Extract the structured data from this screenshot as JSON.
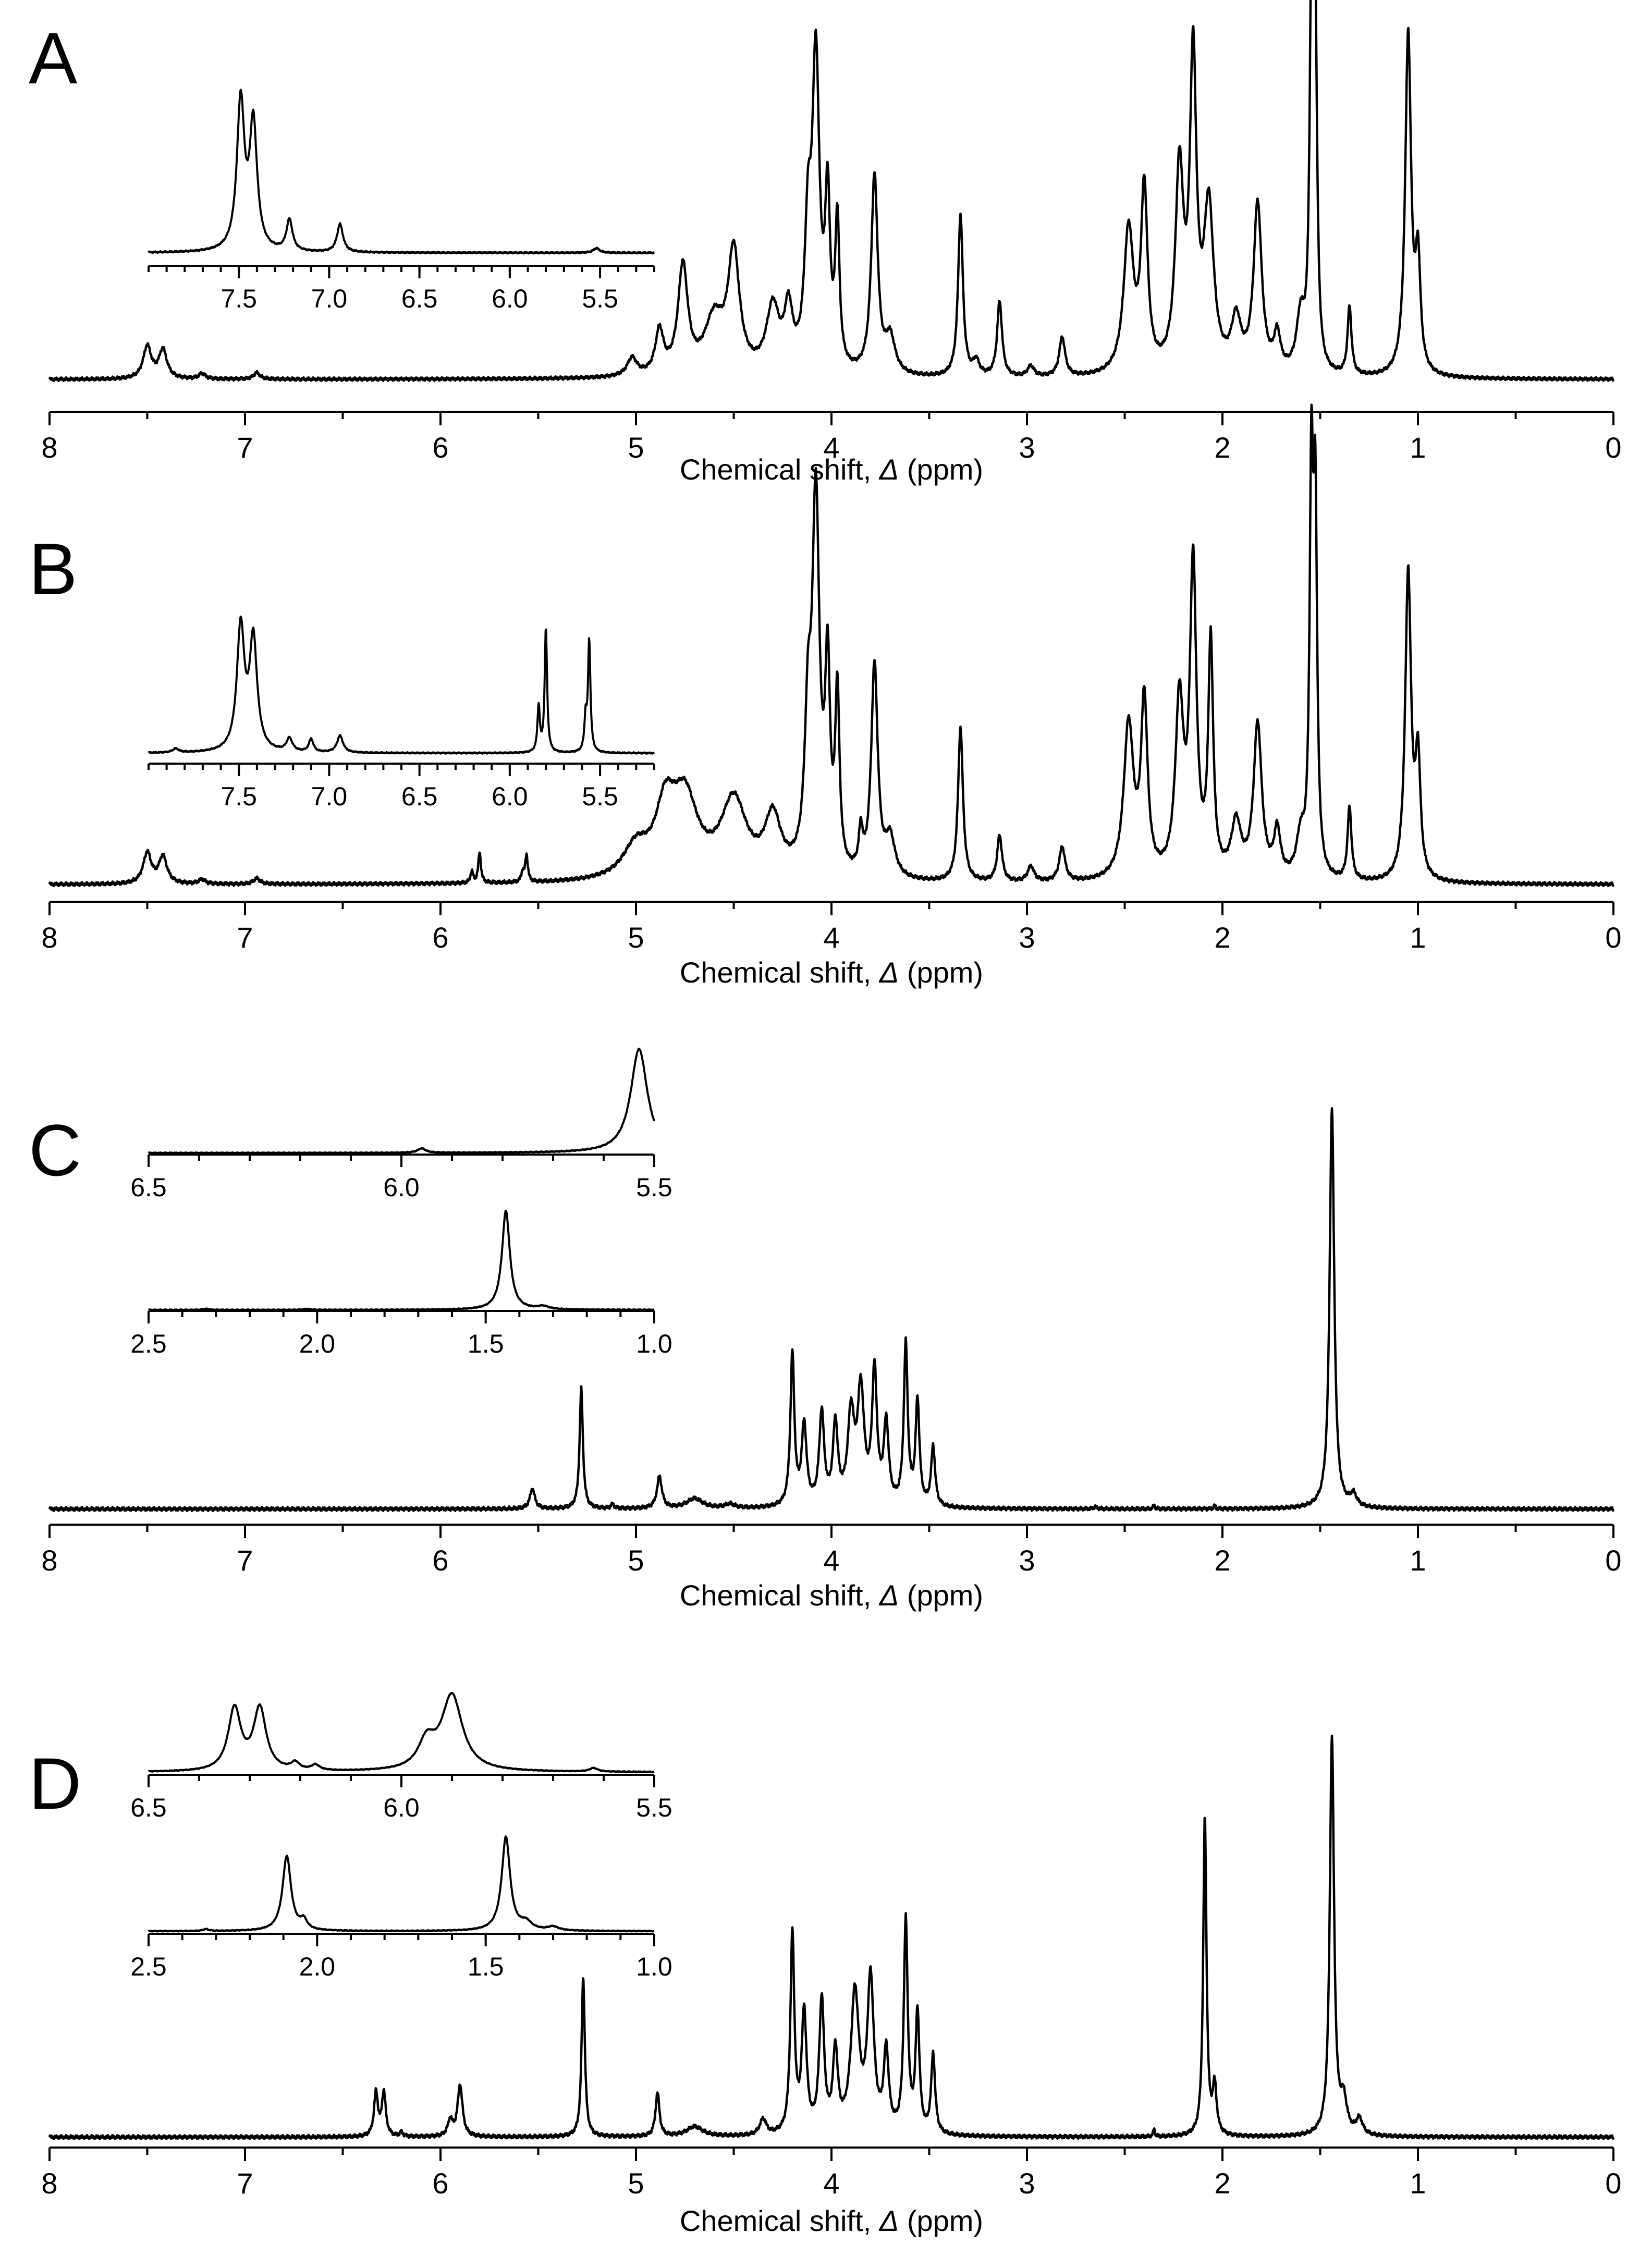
{
  "chart_data": [
    {
      "type": "line",
      "panel": "A",
      "xlabel_main": "Chemical shift, ",
      "xlabel_symbol": "Δ",
      "xlabel_unit": " (ppm)",
      "xlim": [
        8,
        0
      ],
      "x_reversed": true,
      "ticks": [
        "8",
        "7",
        "6",
        "5",
        "4",
        "3",
        "2",
        "1",
        "0"
      ],
      "peaks": [
        {
          "x": 7.5,
          "h": 0.09,
          "w": 0.025
        },
        {
          "x": 7.42,
          "h": 0.08,
          "w": 0.025
        },
        {
          "x": 7.22,
          "h": 0.015,
          "w": 0.02
        },
        {
          "x": 6.94,
          "h": 0.018,
          "w": 0.02
        },
        {
          "x": 5.02,
          "h": 0.05,
          "w": 0.03
        },
        {
          "x": 4.88,
          "h": 0.12,
          "w": 0.025
        },
        {
          "x": 4.76,
          "h": 0.3,
          "w": 0.03
        },
        {
          "x": 4.6,
          "h": 0.15,
          "w": 0.06
        },
        {
          "x": 4.5,
          "h": 0.33,
          "w": 0.035
        },
        {
          "x": 4.3,
          "h": 0.18,
          "w": 0.04
        },
        {
          "x": 4.22,
          "h": 0.16,
          "w": 0.025
        },
        {
          "x": 4.12,
          "h": 0.35,
          "w": 0.02
        },
        {
          "x": 4.08,
          "h": 0.85,
          "w": 0.022
        },
        {
          "x": 4.02,
          "h": 0.45,
          "w": 0.015
        },
        {
          "x": 3.97,
          "h": 0.4,
          "w": 0.013
        },
        {
          "x": 3.78,
          "h": 0.55,
          "w": 0.02
        },
        {
          "x": 3.7,
          "h": 0.1,
          "w": 0.03
        },
        {
          "x": 3.34,
          "h": 0.45,
          "w": 0.015
        },
        {
          "x": 3.26,
          "h": 0.04,
          "w": 0.02
        },
        {
          "x": 3.14,
          "h": 0.21,
          "w": 0.015
        },
        {
          "x": 2.98,
          "h": 0.03,
          "w": 0.02
        },
        {
          "x": 2.82,
          "h": 0.11,
          "w": 0.018
        },
        {
          "x": 2.48,
          "h": 0.4,
          "w": 0.03
        },
        {
          "x": 2.4,
          "h": 0.5,
          "w": 0.02
        },
        {
          "x": 2.22,
          "h": 0.55,
          "w": 0.025
        },
        {
          "x": 2.15,
          "h": 0.85,
          "w": 0.02
        },
        {
          "x": 2.07,
          "h": 0.45,
          "w": 0.03
        },
        {
          "x": 1.93,
          "h": 0.14,
          "w": 0.03
        },
        {
          "x": 1.82,
          "h": 0.47,
          "w": 0.025
        },
        {
          "x": 1.72,
          "h": 0.1,
          "w": 0.02
        },
        {
          "x": 1.6,
          "h": 0.15,
          "w": 0.025
        },
        {
          "x": 1.545,
          "h": 1.0,
          "w": 0.011
        },
        {
          "x": 1.525,
          "h": 0.9,
          "w": 0.011
        },
        {
          "x": 1.35,
          "h": 0.19,
          "w": 0.012
        },
        {
          "x": 1.05,
          "h": 0.95,
          "w": 0.018
        },
        {
          "x": 1.0,
          "h": 0.3,
          "w": 0.015
        }
      ],
      "inset_ranges": [
        {
          "xlim": [
            8.0,
            5.2
          ],
          "ticks": [
            "7.5",
            "7.0",
            "6.5",
            "6.0",
            "5.5"
          ],
          "peaks": [
            {
              "x": 7.49,
              "h": 0.95,
              "w": 0.025
            },
            {
              "x": 7.42,
              "h": 0.8,
              "w": 0.025
            },
            {
              "x": 7.22,
              "h": 0.2,
              "w": 0.02
            },
            {
              "x": 6.94,
              "h": 0.18,
              "w": 0.02
            },
            {
              "x": 5.52,
              "h": 0.03,
              "w": 0.02
            }
          ]
        }
      ]
    },
    {
      "type": "line",
      "panel": "B",
      "xlabel_main": "Chemical shift, ",
      "xlabel_symbol": "Δ",
      "xlabel_unit": " (ppm)",
      "xlim": [
        8,
        0
      ],
      "x_reversed": true,
      "ticks": [
        "8",
        "7",
        "6",
        "5",
        "4",
        "3",
        "2",
        "1",
        "0"
      ],
      "peaks": [
        {
          "x": 7.5,
          "h": 0.08,
          "w": 0.025
        },
        {
          "x": 7.42,
          "h": 0.07,
          "w": 0.025
        },
        {
          "x": 7.22,
          "h": 0.012,
          "w": 0.02
        },
        {
          "x": 6.94,
          "h": 0.015,
          "w": 0.02
        },
        {
          "x": 5.84,
          "h": 0.03,
          "w": 0.008
        },
        {
          "x": 5.8,
          "h": 0.08,
          "w": 0.008
        },
        {
          "x": 5.58,
          "h": 0.025,
          "w": 0.008
        },
        {
          "x": 5.56,
          "h": 0.07,
          "w": 0.008
        },
        {
          "x": 5.0,
          "h": 0.08,
          "w": 0.08
        },
        {
          "x": 4.85,
          "h": 0.16,
          "w": 0.06
        },
        {
          "x": 4.75,
          "h": 0.2,
          "w": 0.08
        },
        {
          "x": 4.5,
          "h": 0.2,
          "w": 0.08
        },
        {
          "x": 4.3,
          "h": 0.15,
          "w": 0.05
        },
        {
          "x": 4.12,
          "h": 0.35,
          "w": 0.02
        },
        {
          "x": 4.08,
          "h": 0.95,
          "w": 0.022
        },
        {
          "x": 4.02,
          "h": 0.5,
          "w": 0.015
        },
        {
          "x": 3.97,
          "h": 0.45,
          "w": 0.013
        },
        {
          "x": 3.85,
          "h": 0.1,
          "w": 0.012
        },
        {
          "x": 3.78,
          "h": 0.55,
          "w": 0.02
        },
        {
          "x": 3.7,
          "h": 0.1,
          "w": 0.03
        },
        {
          "x": 3.34,
          "h": 0.4,
          "w": 0.015
        },
        {
          "x": 3.14,
          "h": 0.12,
          "w": 0.015
        },
        {
          "x": 2.98,
          "h": 0.04,
          "w": 0.02
        },
        {
          "x": 2.82,
          "h": 0.09,
          "w": 0.018
        },
        {
          "x": 2.48,
          "h": 0.4,
          "w": 0.03
        },
        {
          "x": 2.4,
          "h": 0.45,
          "w": 0.02
        },
        {
          "x": 2.22,
          "h": 0.45,
          "w": 0.025
        },
        {
          "x": 2.15,
          "h": 0.8,
          "w": 0.02
        },
        {
          "x": 2.06,
          "h": 0.6,
          "w": 0.015
        },
        {
          "x": 1.93,
          "h": 0.14,
          "w": 0.03
        },
        {
          "x": 1.82,
          "h": 0.4,
          "w": 0.025
        },
        {
          "x": 1.72,
          "h": 0.12,
          "w": 0.02
        },
        {
          "x": 1.6,
          "h": 0.1,
          "w": 0.025
        },
        {
          "x": 1.545,
          "h": 1.0,
          "w": 0.011
        },
        {
          "x": 1.525,
          "h": 0.9,
          "w": 0.011
        },
        {
          "x": 1.35,
          "h": 0.19,
          "w": 0.012
        },
        {
          "x": 1.05,
          "h": 0.8,
          "w": 0.018
        },
        {
          "x": 1.0,
          "h": 0.3,
          "w": 0.015
        }
      ],
      "inset_ranges": [
        {
          "xlim": [
            8.0,
            5.2
          ],
          "ticks": [
            "7.5",
            "7.0",
            "6.5",
            "6.0",
            "5.5"
          ],
          "peaks": [
            {
              "x": 7.85,
              "h": 0.03,
              "w": 0.02
            },
            {
              "x": 7.49,
              "h": 0.95,
              "w": 0.025
            },
            {
              "x": 7.42,
              "h": 0.85,
              "w": 0.025
            },
            {
              "x": 7.22,
              "h": 0.1,
              "w": 0.02
            },
            {
              "x": 7.1,
              "h": 0.1,
              "w": 0.015
            },
            {
              "x": 6.94,
              "h": 0.13,
              "w": 0.02
            },
            {
              "x": 5.84,
              "h": 0.35,
              "w": 0.008
            },
            {
              "x": 5.8,
              "h": 0.95,
              "w": 0.008
            },
            {
              "x": 5.58,
              "h": 0.25,
              "w": 0.008
            },
            {
              "x": 5.56,
              "h": 0.85,
              "w": 0.008
            }
          ]
        }
      ]
    },
    {
      "type": "line",
      "panel": "C",
      "xlabel_main": "Chemical shift, ",
      "xlabel_symbol": "Δ",
      "xlabel_unit": " (ppm)",
      "xlim": [
        8,
        0
      ],
      "x_reversed": true,
      "ticks": [
        "8",
        "7",
        "6",
        "5",
        "4",
        "3",
        "2",
        "1",
        "0"
      ],
      "peaks": [
        {
          "x": 5.53,
          "h": 0.05,
          "w": 0.015
        },
        {
          "x": 5.28,
          "h": 0.3,
          "w": 0.01
        },
        {
          "x": 5.12,
          "h": 0.01,
          "w": 0.01
        },
        {
          "x": 4.88,
          "h": 0.08,
          "w": 0.015
        },
        {
          "x": 4.7,
          "h": 0.025,
          "w": 0.05
        },
        {
          "x": 4.52,
          "h": 0.01,
          "w": 0.03
        },
        {
          "x": 4.2,
          "h": 0.38,
          "w": 0.012
        },
        {
          "x": 4.14,
          "h": 0.2,
          "w": 0.015
        },
        {
          "x": 4.05,
          "h": 0.23,
          "w": 0.015
        },
        {
          "x": 3.98,
          "h": 0.2,
          "w": 0.015
        },
        {
          "x": 3.9,
          "h": 0.22,
          "w": 0.02
        },
        {
          "x": 3.85,
          "h": 0.28,
          "w": 0.02
        },
        {
          "x": 3.78,
          "h": 0.33,
          "w": 0.015
        },
        {
          "x": 3.72,
          "h": 0.2,
          "w": 0.015
        },
        {
          "x": 3.62,
          "h": 0.4,
          "w": 0.012
        },
        {
          "x": 3.56,
          "h": 0.26,
          "w": 0.012
        },
        {
          "x": 3.48,
          "h": 0.15,
          "w": 0.012
        },
        {
          "x": 2.65,
          "h": 0.005,
          "w": 0.01
        },
        {
          "x": 2.35,
          "h": 0.01,
          "w": 0.005
        },
        {
          "x": 2.04,
          "h": 0.008,
          "w": 0.005
        },
        {
          "x": 1.44,
          "h": 1.0,
          "w": 0.014
        },
        {
          "x": 1.33,
          "h": 0.03,
          "w": 0.02
        }
      ],
      "inset_ranges": [
        {
          "xlim": [
            6.5,
            5.5
          ],
          "ticks": [
            "6.5",
            "6.0",
            "5.5"
          ],
          "peaks": [
            {
              "x": 5.53,
              "h": 0.95,
              "w": 0.02
            },
            {
              "x": 5.96,
              "h": 0.04,
              "w": 0.01
            }
          ]
        },
        {
          "xlim": [
            2.5,
            1.0
          ],
          "ticks": [
            "2.5",
            "2.0",
            "1.5",
            "1.0"
          ],
          "peaks": [
            {
              "x": 2.33,
              "h": 0.01,
              "w": 0.01
            },
            {
              "x": 2.03,
              "h": 0.01,
              "w": 0.01
            },
            {
              "x": 1.44,
              "h": 1.0,
              "w": 0.014
            },
            {
              "x": 1.33,
              "h": 0.03,
              "w": 0.02
            }
          ]
        }
      ]
    },
    {
      "type": "line",
      "panel": "D",
      "xlabel_main": "Chemical shift, ",
      "xlabel_symbol": "Δ",
      "xlabel_unit": " (ppm)",
      "xlim": [
        8,
        0
      ],
      "x_reversed": true,
      "ticks": [
        "8",
        "7",
        "6",
        "5",
        "4",
        "3",
        "2",
        "1",
        "0"
      ],
      "peaks": [
        {
          "x": 6.33,
          "h": 0.11,
          "w": 0.012
        },
        {
          "x": 6.29,
          "h": 0.11,
          "w": 0.012
        },
        {
          "x": 6.2,
          "h": 0.01,
          "w": 0.01
        },
        {
          "x": 5.95,
          "h": 0.04,
          "w": 0.015
        },
        {
          "x": 5.9,
          "h": 0.13,
          "w": 0.015
        },
        {
          "x": 5.27,
          "h": 0.4,
          "w": 0.01
        },
        {
          "x": 4.89,
          "h": 0.11,
          "w": 0.012
        },
        {
          "x": 4.7,
          "h": 0.025,
          "w": 0.05
        },
        {
          "x": 4.35,
          "h": 0.04,
          "w": 0.02
        },
        {
          "x": 4.2,
          "h": 0.5,
          "w": 0.012
        },
        {
          "x": 4.14,
          "h": 0.3,
          "w": 0.015
        },
        {
          "x": 4.05,
          "h": 0.33,
          "w": 0.015
        },
        {
          "x": 3.98,
          "h": 0.2,
          "w": 0.015
        },
        {
          "x": 3.88,
          "h": 0.35,
          "w": 0.025
        },
        {
          "x": 3.8,
          "h": 0.38,
          "w": 0.02
        },
        {
          "x": 3.72,
          "h": 0.2,
          "w": 0.015
        },
        {
          "x": 3.62,
          "h": 0.53,
          "w": 0.012
        },
        {
          "x": 3.56,
          "h": 0.3,
          "w": 0.012
        },
        {
          "x": 3.48,
          "h": 0.2,
          "w": 0.012
        },
        {
          "x": 2.35,
          "h": 0.02,
          "w": 0.005
        },
        {
          "x": 2.09,
          "h": 0.8,
          "w": 0.01
        },
        {
          "x": 2.04,
          "h": 0.12,
          "w": 0.012
        },
        {
          "x": 1.44,
          "h": 1.0,
          "w": 0.013
        },
        {
          "x": 1.38,
          "h": 0.08,
          "w": 0.02
        },
        {
          "x": 1.3,
          "h": 0.04,
          "w": 0.02
        }
      ],
      "inset_ranges": [
        {
          "xlim": [
            6.5,
            5.5
          ],
          "ticks": [
            "6.5",
            "6.0",
            "5.5"
          ],
          "peaks": [
            {
              "x": 6.33,
              "h": 0.7,
              "w": 0.015
            },
            {
              "x": 6.28,
              "h": 0.7,
              "w": 0.015
            },
            {
              "x": 6.21,
              "h": 0.08,
              "w": 0.01
            },
            {
              "x": 6.17,
              "h": 0.06,
              "w": 0.01
            },
            {
              "x": 5.95,
              "h": 0.3,
              "w": 0.02
            },
            {
              "x": 5.9,
              "h": 0.85,
              "w": 0.025
            },
            {
              "x": 5.62,
              "h": 0.04,
              "w": 0.01
            }
          ]
        },
        {
          "xlim": [
            2.5,
            1.0
          ],
          "ticks": [
            "2.5",
            "2.0",
            "1.5",
            "1.0"
          ],
          "peaks": [
            {
              "x": 2.33,
              "h": 0.02,
              "w": 0.01
            },
            {
              "x": 2.09,
              "h": 0.8,
              "w": 0.015
            },
            {
              "x": 2.04,
              "h": 0.1,
              "w": 0.012
            },
            {
              "x": 1.44,
              "h": 1.0,
              "w": 0.015
            },
            {
              "x": 1.38,
              "h": 0.08,
              "w": 0.02
            },
            {
              "x": 1.3,
              "h": 0.04,
              "w": 0.02
            }
          ]
        }
      ]
    }
  ]
}
